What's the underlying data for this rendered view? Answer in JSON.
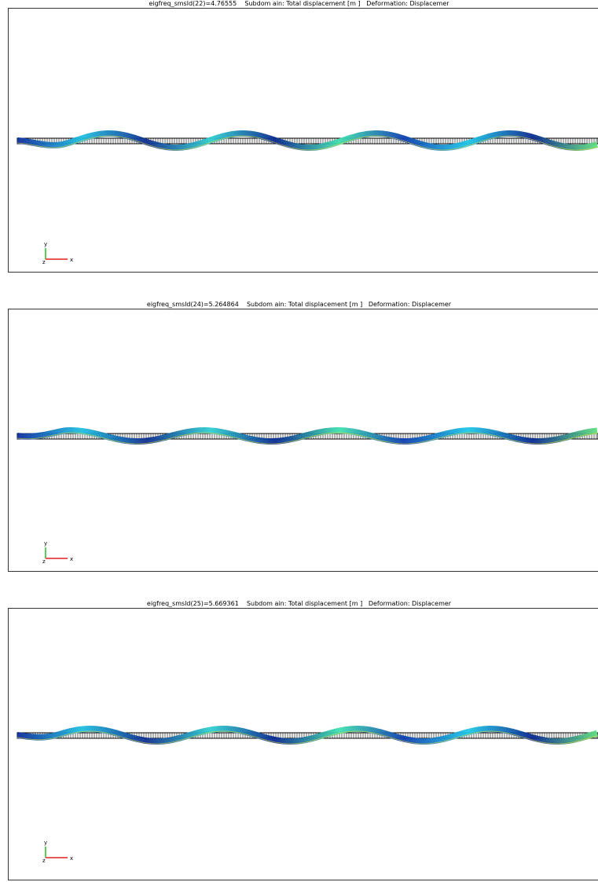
{
  "panels": [
    {
      "title": "eigfreq_smsld(22)=4.76555    Subdom ain: Total displacement [m ]   Deformation: Displacemer",
      "axes": {
        "y": "y",
        "z": "z",
        "x": "x"
      }
    },
    {
      "title": "eigfreq_smsld(24)=5.264864    Subdom ain: Total displacement [m ]   Deformation: Displacemer",
      "axes": {
        "y": "y",
        "z": "z",
        "x": "x"
      }
    },
    {
      "title": "eigfreq_smsld(25)=5.669361    Subdom ain: Total displacement [m ]   Deformation: Displacemer",
      "axes": {
        "y": "y",
        "z": "z",
        "x": "x"
      }
    }
  ]
}
